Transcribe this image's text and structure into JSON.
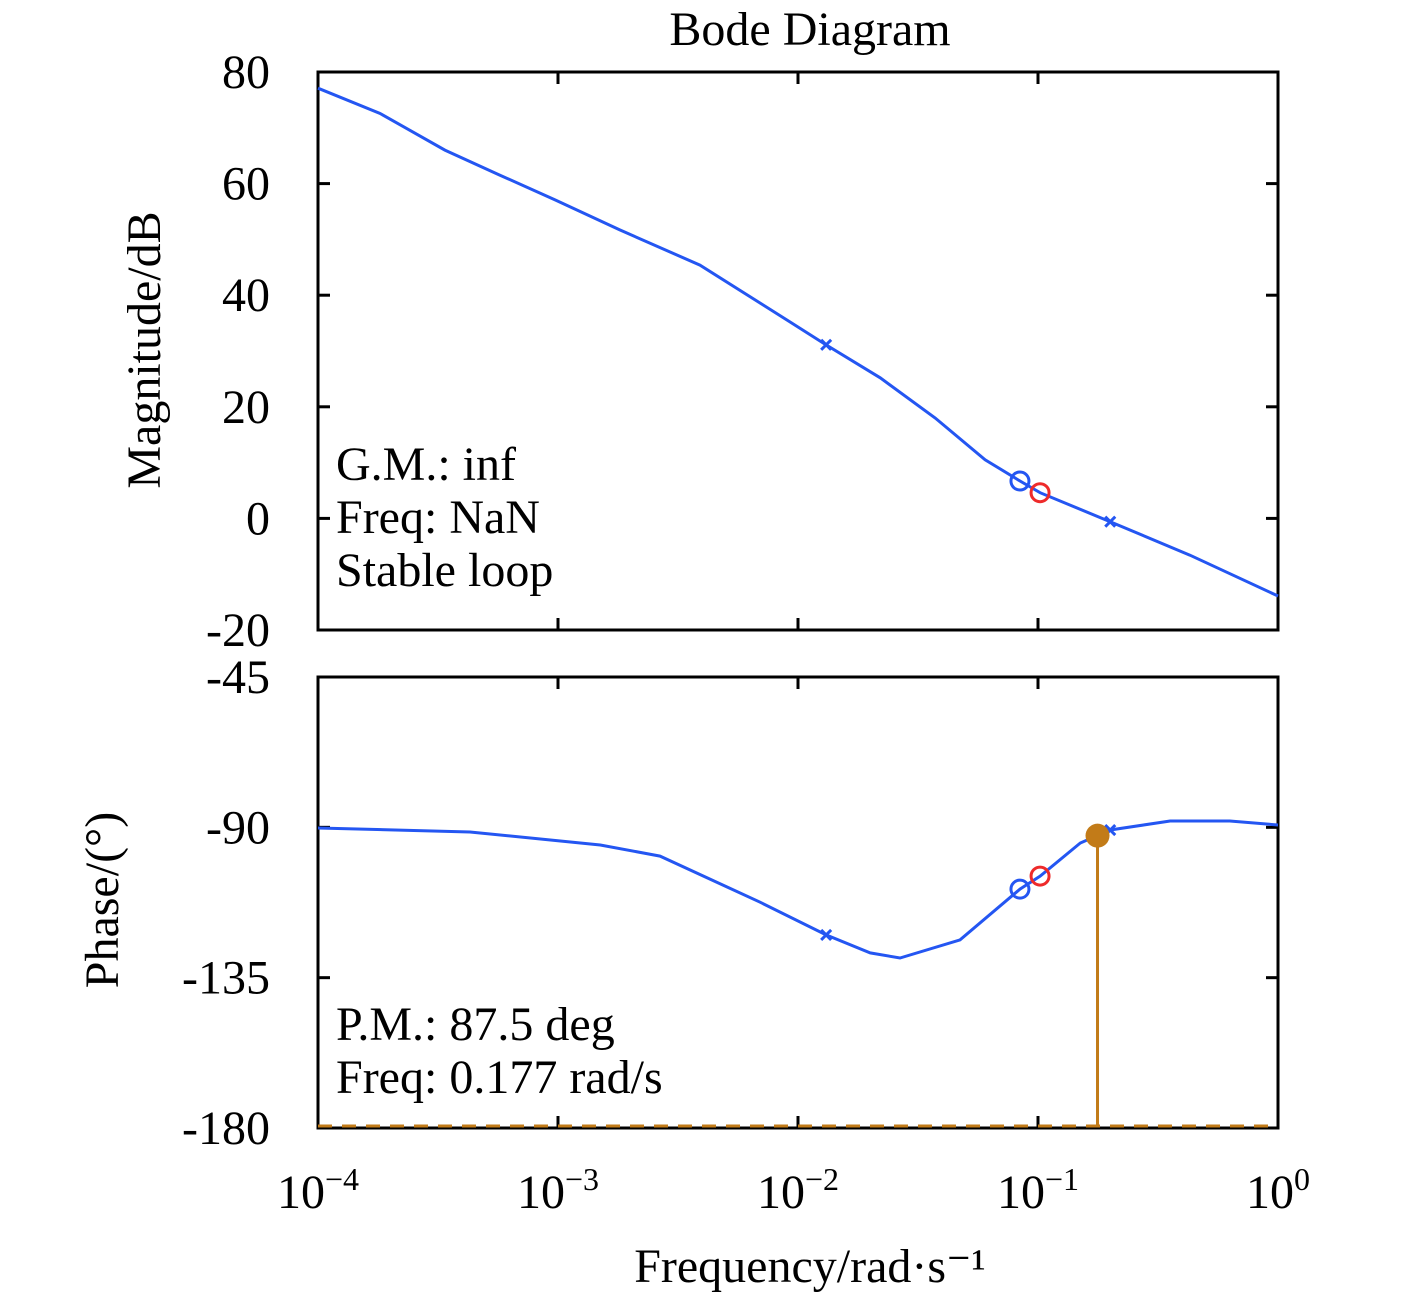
{
  "chart_data": [
    {
      "type": "line",
      "title": "Bode Diagram",
      "ylabel": "Magnitude/dB",
      "log_x": true,
      "xlim": [
        0.0001,
        1
      ],
      "xticks": [
        0.0001,
        0.001,
        0.01,
        0.1,
        1
      ],
      "ylim": [
        -20,
        80
      ],
      "yticks": [
        -20,
        0,
        20,
        40,
        60,
        80
      ],
      "x": [
        0.0001,
        0.000181,
        0.000338,
        0.000573,
        0.00097,
        0.00181,
        0.0039,
        0.00927,
        0.0131,
        0.022,
        0.0373,
        0.0602,
        0.0841,
        0.102,
        0.2,
        0.43,
        1
      ],
      "series": [
        {
          "color": "#2456f2",
          "values": [
            77.1,
            72.6,
            66.0,
            61.5,
            57.1,
            51.7,
            45.4,
            35.2,
            31.1,
            25.2,
            18.0,
            10.5,
            6.7,
            4.6,
            -0.6,
            -6.6,
            -13.9
          ]
        }
      ],
      "points": [
        {
          "x": 0.0131,
          "value": 31.1,
          "marker": "x",
          "color": "#2456f2"
        },
        {
          "x": 0.2,
          "value": -0.6,
          "marker": "x",
          "color": "#2456f2"
        },
        {
          "x": 0.0841,
          "value": 6.7,
          "marker": "circle",
          "color": "#2456f2"
        },
        {
          "x": 0.102,
          "value": 4.6,
          "marker": "circle",
          "color": "#ee2a2a"
        }
      ],
      "annotations": [
        "G.M.: inf",
        "Freq: NaN",
        "Stable loop"
      ]
    },
    {
      "type": "line",
      "ylabel": "Phase/(°)",
      "xlabel": "Frequency/rad·s⁻¹",
      "log_x": true,
      "xlim": [
        0.0001,
        1
      ],
      "xticks": [
        {
          "value": 0.0001,
          "label": "10−4"
        },
        {
          "value": 0.001,
          "label": "10−3"
        },
        {
          "value": 0.01,
          "label": "10−2"
        },
        {
          "value": 0.1,
          "label": "10−1"
        },
        {
          "value": 1,
          "label": "100"
        }
      ],
      "ylim": [
        -180,
        -45
      ],
      "yticks": [
        -180,
        -135,
        -90,
        -45
      ],
      "x": [
        0.0001,
        0.00043,
        0.0015,
        0.00266,
        0.00695,
        0.0131,
        0.02,
        0.0266,
        0.0473,
        0.0841,
        0.102,
        0.15,
        0.2,
        0.355,
        0.63,
        1
      ],
      "series": [
        {
          "color": "#2456f2",
          "values": [
            -90.2,
            -91.4,
            -95.3,
            -98.6,
            -112.4,
            -122.2,
            -127.6,
            -129.1,
            -123.7,
            -108.5,
            -104.6,
            -94.7,
            -90.8,
            -88.1,
            -88.1,
            -89.3
          ]
        }
      ],
      "points": [
        {
          "x": 0.0131,
          "value": -122.2,
          "marker": "x",
          "color": "#2456f2"
        },
        {
          "x": 0.2,
          "value": -90.8,
          "marker": "x",
          "color": "#2456f2"
        },
        {
          "x": 0.0841,
          "value": -108.5,
          "marker": "circle",
          "color": "#2456f2"
        },
        {
          "x": 0.102,
          "value": -104.6,
          "marker": "circle",
          "color": "#ee2a2a"
        },
        {
          "x": 0.177,
          "value": -92.5,
          "marker": "stem",
          "color": "#c27b18"
        }
      ],
      "reference_line": {
        "value": -180,
        "color": "#c27b18"
      },
      "annotations": [
        "P.M.: 87.5 deg",
        "Freq: 0.177 rad/s"
      ]
    }
  ]
}
